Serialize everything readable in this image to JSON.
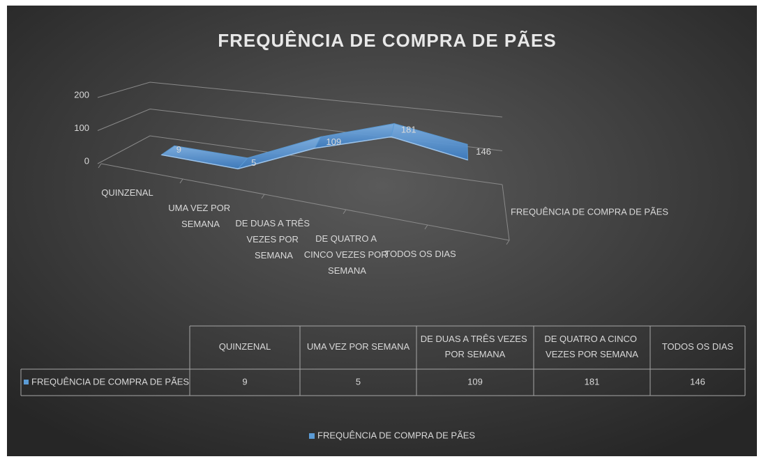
{
  "chart_data": {
    "type": "line3d",
    "title": "FREQUÊNCIA DE COMPRA DE PÃES",
    "categories": [
      "QUINZENAL",
      "UMA VEZ POR SEMANA",
      "DE DUAS A TRÊS VEZES POR SEMANA",
      "DE QUATRO A CINCO VEZES POR SEMANA",
      "TODOS OS DIAS"
    ],
    "series": [
      {
        "name": "FREQUÊNCIA DE COMPRA DE PÃES",
        "color": "#5b9bd5",
        "values": [
          9,
          5,
          109,
          181,
          146
        ]
      }
    ],
    "ylim": [
      0,
      200
    ],
    "yticks": [
      0,
      100,
      200
    ],
    "grid": true,
    "legend": "bottom",
    "data_table": true
  }
}
